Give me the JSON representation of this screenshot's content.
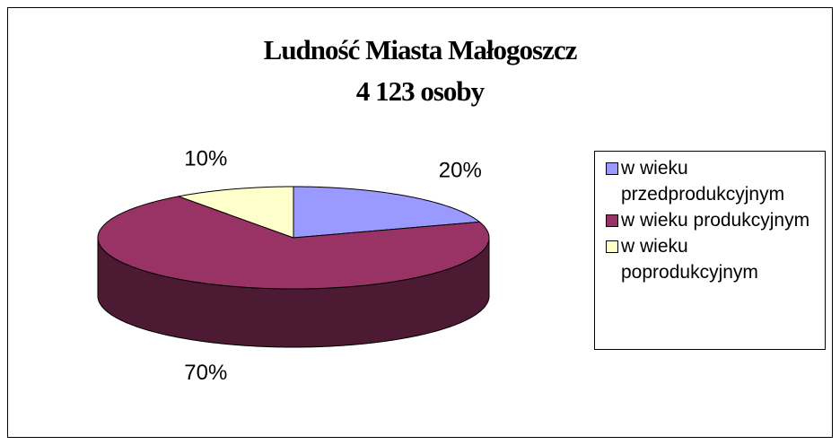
{
  "chart_data": {
    "type": "pie3d",
    "title": "Ludność Miasta Małogoszcz",
    "subtitle": "4 123 osoby",
    "categories": [
      "w wieku przedprodukcyjnym",
      "w wieku produkcyjnym",
      "w wieku poprodukcyjnym"
    ],
    "values": [
      20,
      70,
      10
    ],
    "value_labels": [
      "20%",
      "70%",
      "10%"
    ],
    "colors": [
      "#9999ff",
      "#993366",
      "#ffffcc"
    ],
    "legend": "right"
  }
}
